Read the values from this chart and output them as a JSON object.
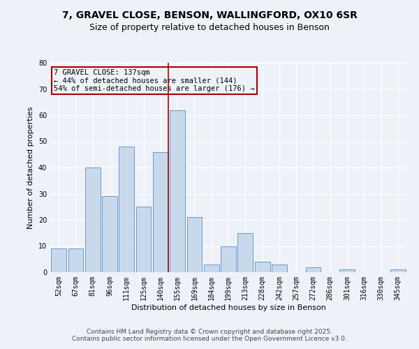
{
  "title1": "7, GRAVEL CLOSE, BENSON, WALLINGFORD, OX10 6SR",
  "title2": "Size of property relative to detached houses in Benson",
  "xlabel": "Distribution of detached houses by size in Benson",
  "ylabel": "Number of detached properties",
  "categories": [
    "52sqm",
    "67sqm",
    "81sqm",
    "96sqm",
    "111sqm",
    "125sqm",
    "140sqm",
    "155sqm",
    "169sqm",
    "184sqm",
    "199sqm",
    "213sqm",
    "228sqm",
    "242sqm",
    "257sqm",
    "272sqm",
    "286sqm",
    "301sqm",
    "316sqm",
    "330sqm",
    "345sqm"
  ],
  "values": [
    9,
    9,
    40,
    29,
    48,
    25,
    46,
    62,
    21,
    3,
    10,
    15,
    4,
    3,
    0,
    2,
    0,
    1,
    0,
    0,
    1
  ],
  "bar_color": "#c9d9ec",
  "bar_edge_color": "#6699cc",
  "vline_color": "#aa0000",
  "annotation_lines": [
    "7 GRAVEL CLOSE: 137sqm",
    "← 44% of detached houses are smaller (144)",
    "54% of semi-detached houses are larger (176) →"
  ],
  "annotation_box_color": "#aa0000",
  "background_color": "#eef2f8",
  "grid_color": "#ffffff",
  "ylim": [
    0,
    80
  ],
  "yticks": [
    0,
    10,
    20,
    30,
    40,
    50,
    60,
    70,
    80
  ],
  "footer": "Contains HM Land Registry data © Crown copyright and database right 2025.\nContains public sector information licensed under the Open Government Licence v3.0.",
  "title_fontsize": 10,
  "subtitle_fontsize": 9,
  "axis_label_fontsize": 8,
  "tick_fontsize": 7,
  "footer_fontsize": 6.5,
  "annotation_fontsize": 7.5
}
